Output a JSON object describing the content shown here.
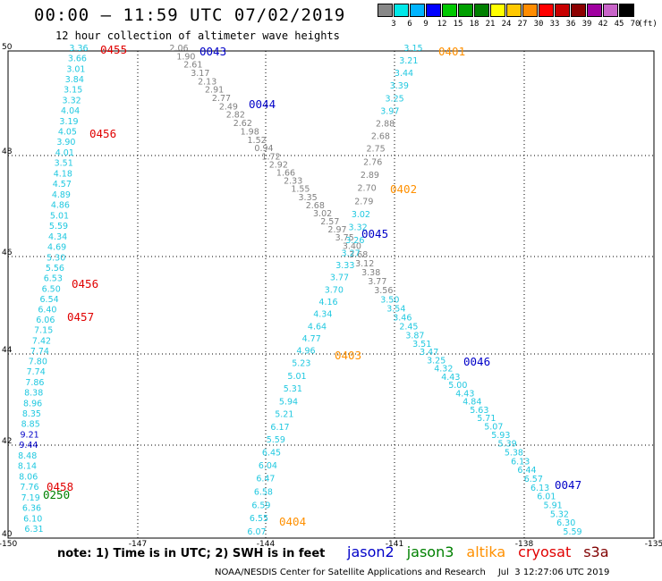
{
  "header": {
    "title": "00:00 – 11:59 UTC 07/02/2019",
    "subtitle": "12 hour collection of altimeter wave heights"
  },
  "legend": {
    "colors": [
      "#888888",
      "#00e8e8",
      "#00b4ff",
      "#0000ff",
      "#00c800",
      "#00a000",
      "#008000",
      "#ffff00",
      "#ffc800",
      "#ff8c00",
      "#ff0000",
      "#c80000",
      "#8c0000",
      "#a000a0",
      "#c864c8",
      "#000000"
    ],
    "labels": [
      "3",
      "6",
      "9",
      "12",
      "15",
      "18",
      "21",
      "24",
      "27",
      "30",
      "33",
      "36",
      "39",
      "42",
      "45",
      "70",
      "(ft)"
    ]
  },
  "map": {
    "lon_ticks": [
      "-150",
      "-147",
      "-144",
      "-141",
      "-138",
      "-135"
    ],
    "lat_ticks": [
      "50",
      "48",
      "46",
      "44",
      "42",
      "40"
    ],
    "tracks": [
      {
        "color": "#20c8e0",
        "values": [
          "3.36",
          "3.66",
          "3.01",
          "3.84",
          "3.15",
          "3.32",
          "4.04",
          "3.19",
          "4.05",
          "3.90",
          "4.01",
          "3.51",
          "4.18",
          "4.57",
          "4.89",
          "4.86",
          "5.01",
          "5.59",
          "4.34",
          "4.69",
          "5.30",
          "5.56",
          "6.53",
          "6.50",
          "6.54",
          "6.40",
          "6.06",
          "7.15",
          "7.42",
          "7.74",
          "7.80",
          "7.74",
          "7.86",
          "8.38",
          "8.96",
          "8.35",
          "8.85",
          "9.21",
          "9.44",
          "8.48",
          "8.14",
          "8.06",
          "7.76",
          "7.19",
          "6.36",
          "6.10",
          "6.31"
        ]
      },
      {
        "color": "#808080",
        "values": [
          "2.06",
          "1.90",
          "2.61",
          "3.17",
          "2.13",
          "2.91",
          "2.77",
          "2.49",
          "2.82",
          "2.62",
          "1.98",
          "1.52",
          "0.94",
          "1.72",
          "2.92",
          "1.66",
          "2.33",
          "1.55",
          "3.35",
          "2.68",
          "3.02",
          "2.57",
          "2.97",
          "3.75",
          "3.40",
          "3.68",
          "3.12",
          "3.38",
          "3.77",
          "3.56",
          "3.50",
          "3.54",
          "3.46",
          "2.45",
          "3.87",
          "3.51",
          "3.47",
          "3.25",
          "4.32",
          "4.43",
          "5.00",
          "4.43",
          "4.84",
          "5.63",
          "5.71",
          "5.07",
          "5.93",
          "5.39",
          "5.38",
          "6.13",
          "6.44",
          "6.57",
          "6.13",
          "6.01",
          "5.91",
          "5.32",
          "6.30",
          "5.59"
        ]
      },
      {
        "color": "#20c8e0",
        "values": [
          "3.15",
          "3.21",
          "3.44",
          "3.39",
          "3.25",
          "3.97",
          "2.88",
          "2.68",
          "2.75",
          "2.76",
          "2.89",
          "2.70",
          "2.79",
          "3.02",
          "3.32",
          "3.26",
          "3.27",
          "3.33",
          "3.77",
          "3.70",
          "4.16",
          "4.34",
          "4.64",
          "4.77",
          "4.96",
          "5.23",
          "5.01",
          "5.31",
          "5.94",
          "5.21",
          "6.17",
          "5.59",
          "6.45",
          "6.04",
          "6.47",
          "6.58",
          "6.59",
          "6.55",
          "6.07"
        ]
      }
    ],
    "passes": [
      {
        "id": "0455",
        "color": "#e00000"
      },
      {
        "id": "0456",
        "color": "#e00000"
      },
      {
        "id": "0456",
        "color": "#e00000"
      },
      {
        "id": "0457",
        "color": "#e00000"
      },
      {
        "id": "0458",
        "color": "#e00000"
      },
      {
        "id": "0250",
        "color": "#008000"
      },
      {
        "id": "0043",
        "color": "#0000c8"
      },
      {
        "id": "0044",
        "color": "#0000c8"
      },
      {
        "id": "0045",
        "color": "#0000c8"
      },
      {
        "id": "0046",
        "color": "#0000c8"
      },
      {
        "id": "0047",
        "color": "#0000c8"
      },
      {
        "id": "0401",
        "color": "#ff9000"
      },
      {
        "id": "0402",
        "color": "#ff9000"
      },
      {
        "id": "0403",
        "color": "#ff9000"
      },
      {
        "id": "0404",
        "color": "#ff9000"
      }
    ]
  },
  "footer": {
    "note": "note: 1) Time is in UTC; 2) SWH is in feet",
    "satellites": [
      {
        "name": "jason2",
        "color": "#0000c8"
      },
      {
        "name": "jason3",
        "color": "#008000"
      },
      {
        "name": "altika",
        "color": "#ff9000"
      },
      {
        "name": "cryosat",
        "color": "#e00000"
      },
      {
        "name": "s3a",
        "color": "#800000"
      }
    ],
    "credit": "NOAA/NESDIS Center for Satellite Applications and Research",
    "date": "Jul  3 12:27:06 UTC 2019"
  }
}
